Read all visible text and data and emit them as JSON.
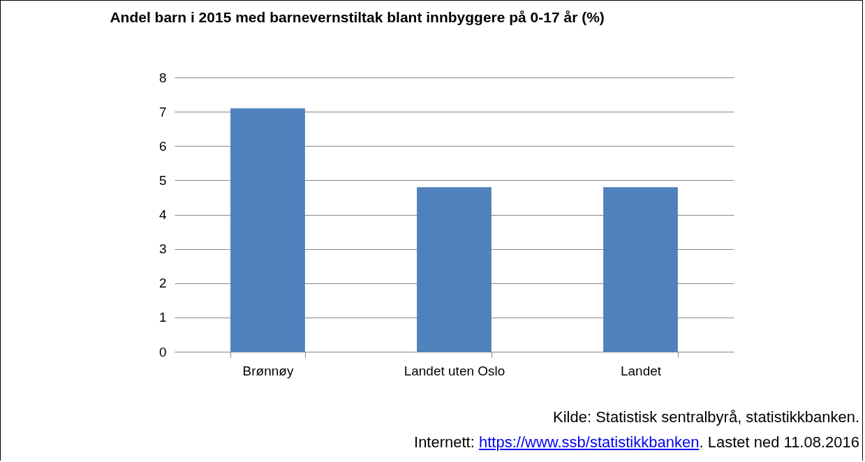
{
  "chart_data": {
    "type": "bar",
    "title": "Andel barn i 2015 med barnevernstiltak blant innbyggere på 0-17 år (%)",
    "categories": [
      "Brønnøy",
      "Landet uten Oslo",
      "Landet"
    ],
    "values": [
      7.1,
      4.8,
      4.8
    ],
    "color": "#4f81bd",
    "ylim": [
      0,
      8
    ],
    "yticks": [
      0,
      1,
      2,
      3,
      4,
      5,
      6,
      7,
      8
    ],
    "grid": "y",
    "annotations": [
      "Kilde: Statistisk sentralbyrå, statistikkbanken.",
      "Internett: https://www.ssb/statistikkbanken. Lastet ned 11.08.2016"
    ]
  }
}
